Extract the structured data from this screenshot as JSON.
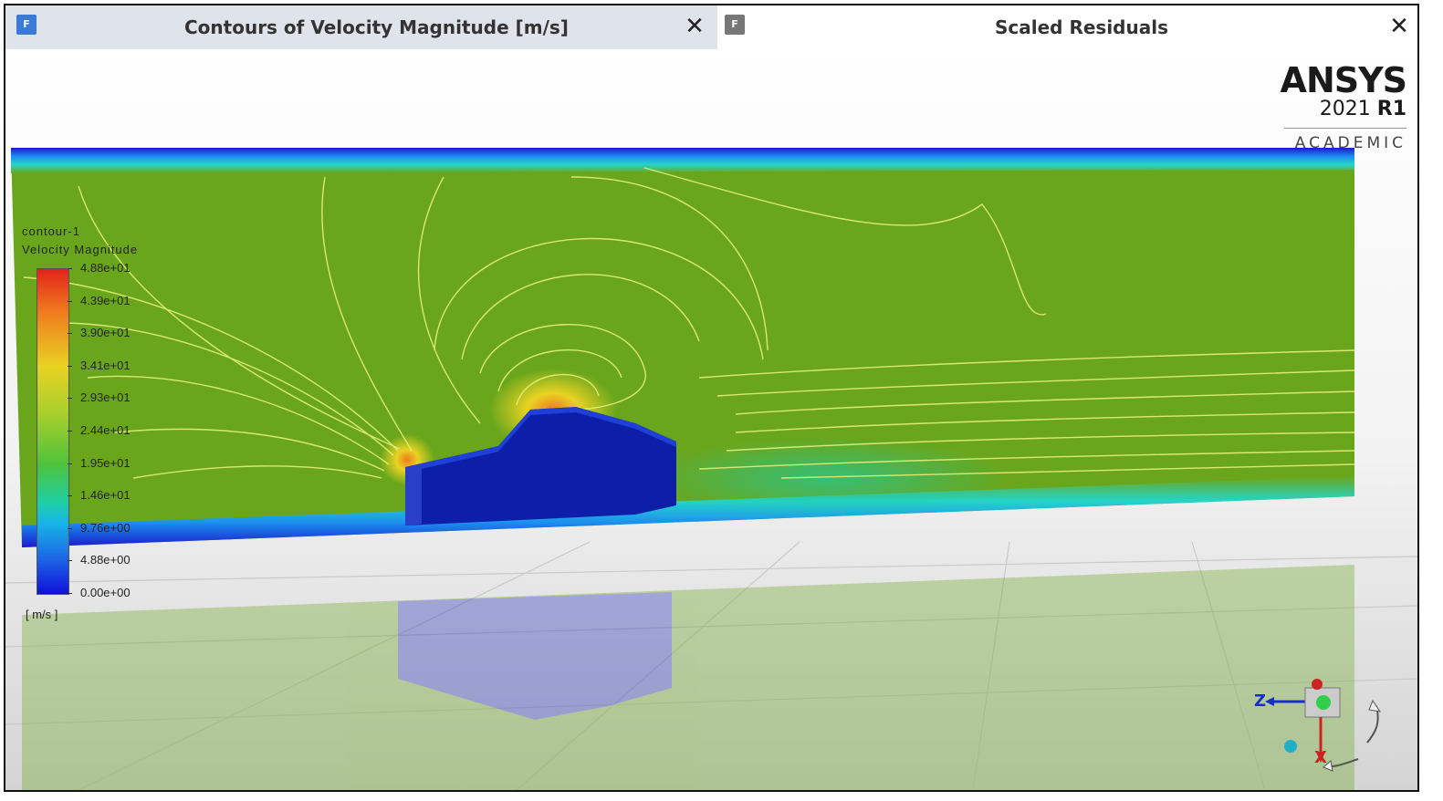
{
  "tabs": [
    {
      "label": "Contours of Velocity Magnitude [m/s]",
      "icon": "fluent-window-icon",
      "state": "active",
      "close_glyph": "✕"
    },
    {
      "label": "Scaled Residuals",
      "icon": "fluent-window-icon",
      "state": "inactive",
      "close_glyph": "✕"
    }
  ],
  "tab_icon_glyph": "F",
  "logo": {
    "brand": "ANSYS",
    "version": "2021",
    "release": "R1",
    "edition": "ACADEMIC"
  },
  "legend": {
    "title_line1": "contour-1",
    "title_line2": "Velocity Magnitude",
    "values": [
      "4.88e+01",
      "4.39e+01",
      "3.90e+01",
      "3.41e+01",
      "2.93e+01",
      "2.44e+01",
      "1.95e+01",
      "1.46e+01",
      "9.76e+00",
      "4.88e+00",
      "0.00e+00"
    ],
    "unit": "[ m/s ]"
  },
  "triad": {
    "z_label": "Z",
    "x_label": "X"
  },
  "colors": {
    "freestream": "#6aa61c",
    "wall": "#1a1acc",
    "body": "#0d1fa8",
    "contour_line": "#e6f07a",
    "active_tab": "#dfe3ea"
  }
}
